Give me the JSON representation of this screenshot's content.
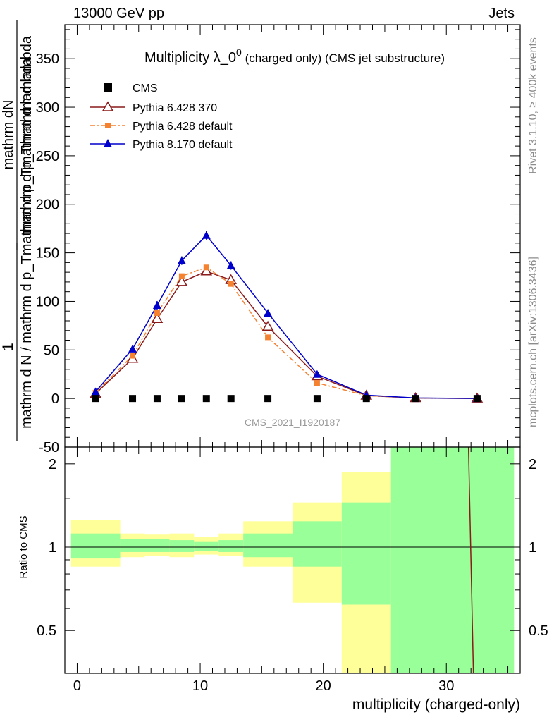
{
  "header": {
    "energy_label": "13000 GeV pp",
    "category_label": "Jets"
  },
  "side_labels": {
    "rivet": "Rivet 3.1.10, ≥ 400k events",
    "mcplots": "mcplots.cern.ch [arXiv:1306.3436]"
  },
  "chart_data": {
    "type": "line",
    "title_main": "Multiplicity λ_0",
    "title_sup": "0",
    "title_sub": " (charged only) (CMS jet substructure)",
    "xlabel": "multiplicity (charged-only)",
    "ylabel_top": "mathrm dN",
    "ylabel_denom": "mathrm d p_Tmathrm d lambda",
    "ylabel_one": "1",
    "ylabel_bottom": "mathrm d N / mathrm d p_Tmathrm d p_Tmathrm d lambda",
    "ratio_ylabel": "Ratio to CMS",
    "watermark": "CMS_2021_I1920187",
    "xlim": [
      -1,
      36
    ],
    "ylim": [
      -50,
      385
    ],
    "ratio_ylim": [
      0.35,
      2.3
    ],
    "x_ticks": [
      0,
      10,
      20,
      30
    ],
    "y_ticks": [
      -50,
      0,
      50,
      100,
      150,
      200,
      250,
      300,
      350
    ],
    "ratio_ticks": [
      0.5,
      1,
      2
    ],
    "legend": [
      "CMS",
      "Pythia 6.428 370",
      "Pythia 6.428 default",
      "Pythia 8.170 default"
    ],
    "series": [
      {
        "name": "CMS",
        "color": "#000000",
        "marker": "square",
        "x": [
          1.5,
          4.5,
          6.5,
          8.5,
          10.5,
          12.5,
          15.5,
          19.5,
          23.5,
          27.5,
          32.5
        ],
        "y": [
          0,
          0,
          0,
          0,
          0,
          0,
          0,
          0,
          0,
          0,
          0
        ]
      },
      {
        "name": "Pythia 6.428 370",
        "color": "#8b1a1a",
        "marker": "triangle-open",
        "x": [
          1.5,
          4.5,
          6.5,
          8.5,
          10.5,
          12.5,
          15.5,
          19.5,
          23.5,
          27.5,
          32.5
        ],
        "y": [
          5,
          41,
          82,
          120,
          131,
          122,
          74,
          23,
          3,
          0.5,
          0
        ]
      },
      {
        "name": "Pythia 6.428 default",
        "color": "#f58231",
        "marker": "square-small",
        "x": [
          1.5,
          4.5,
          6.5,
          8.5,
          10.5,
          12.5,
          15.5,
          19.5,
          23.5,
          27.5,
          32.5
        ],
        "y": [
          6,
          44,
          88,
          126,
          135,
          118,
          63,
          16,
          3,
          0.4,
          0
        ]
      },
      {
        "name": "Pythia 8.170 default",
        "color": "#0000cc",
        "marker": "triangle",
        "x": [
          1.5,
          4.5,
          6.5,
          8.5,
          10.5,
          12.5,
          15.5,
          19.5,
          23.5,
          27.5,
          32.5
        ],
        "y": [
          7,
          51,
          96,
          142,
          168,
          137,
          88,
          25,
          3.5,
          0.6,
          0
        ]
      }
    ],
    "ratio_bands": [
      {
        "x0": -0.5,
        "x1": 3.5,
        "g": [
          0.91,
          1.12
        ],
        "y": [
          0.85,
          1.25
        ]
      },
      {
        "x0": 3.5,
        "x1": 5.5,
        "g": [
          0.96,
          1.07
        ],
        "y": [
          0.92,
          1.12
        ]
      },
      {
        "x0": 5.5,
        "x1": 7.5,
        "g": [
          0.96,
          1.07
        ],
        "y": [
          0.93,
          1.11
        ]
      },
      {
        "x0": 7.5,
        "x1": 9.5,
        "g": [
          0.96,
          1.06
        ],
        "y": [
          0.92,
          1.12
        ]
      },
      {
        "x0": 9.5,
        "x1": 11.5,
        "g": [
          0.97,
          1.05
        ],
        "y": [
          0.94,
          1.09
        ]
      },
      {
        "x0": 11.5,
        "x1": 13.5,
        "g": [
          0.96,
          1.06
        ],
        "y": [
          0.93,
          1.12
        ]
      },
      {
        "x0": 13.5,
        "x1": 17.5,
        "g": [
          0.92,
          1.12
        ],
        "y": [
          0.85,
          1.24
        ]
      },
      {
        "x0": 17.5,
        "x1": 21.5,
        "g": [
          0.85,
          1.24
        ],
        "y": [
          0.63,
          1.45
        ]
      },
      {
        "x0": 21.5,
        "x1": 25.5,
        "g": [
          0.62,
          1.45
        ],
        "y": [
          0.35,
          1.87
        ]
      },
      {
        "x0": 25.5,
        "x1": 35.5,
        "g": [
          0.35,
          2.3
        ],
        "y": [
          0.35,
          2.3
        ]
      }
    ],
    "ratio_line": {
      "color": "#8b1a1a",
      "x": [
        31.8,
        32.2
      ],
      "y": [
        2.3,
        0.35
      ]
    },
    "band_colors": {
      "green": "#99ff99",
      "yellow": "#ffff99"
    }
  }
}
